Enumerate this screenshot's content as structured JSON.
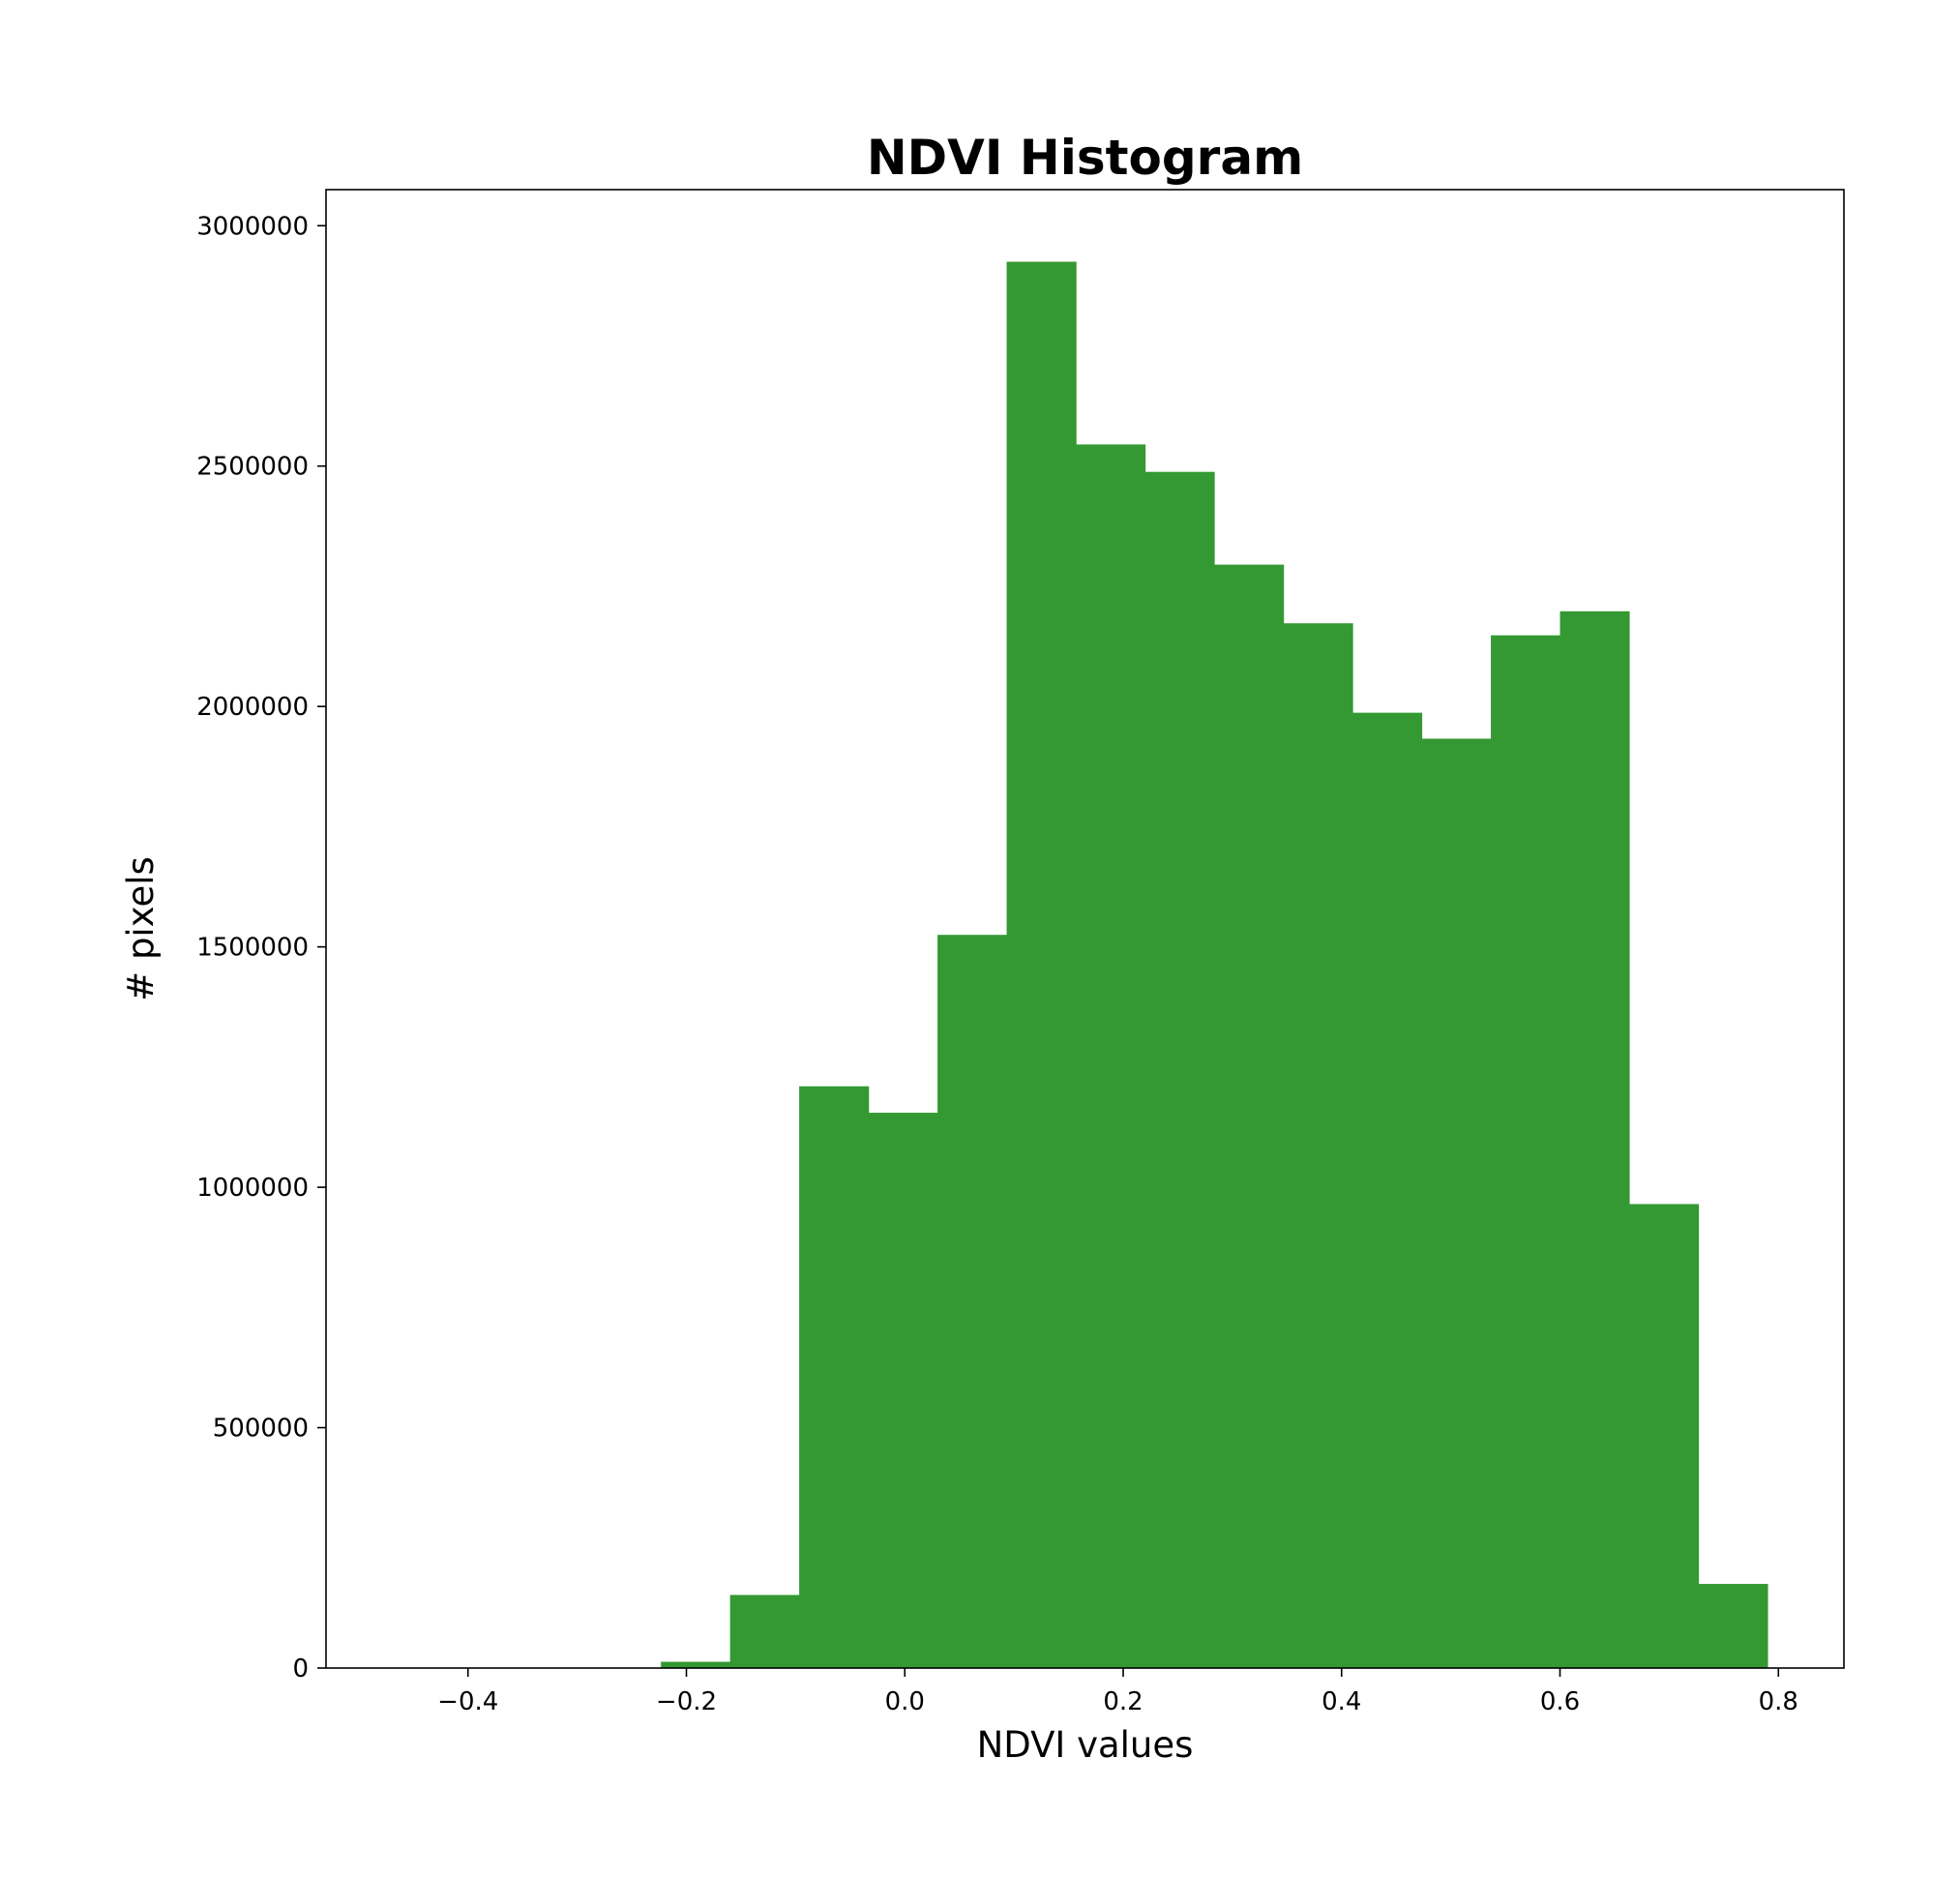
{
  "chart_data": {
    "type": "bar",
    "title": "NDVI Histogram",
    "xlabel": "NDVI values",
    "ylabel": "# pixels",
    "xlim": [
      -0.53,
      0.86
    ],
    "ylim": [
      0,
      3075000
    ],
    "bar_color": "#349933",
    "grid": false,
    "legend": "none",
    "x_ticks": [
      {
        "value": -0.4,
        "label": "−0.4"
      },
      {
        "value": -0.2,
        "label": "−0.2"
      },
      {
        "value": 0.0,
        "label": "0.0"
      },
      {
        "value": 0.2,
        "label": "0.2"
      },
      {
        "value": 0.4,
        "label": "0.4"
      },
      {
        "value": 0.6,
        "label": "0.6"
      },
      {
        "value": 0.8,
        "label": "0.8"
      }
    ],
    "y_ticks": [
      {
        "value": 0,
        "label": "0"
      },
      {
        "value": 500000,
        "label": "500000"
      },
      {
        "value": 1000000,
        "label": "1000000"
      },
      {
        "value": 1500000,
        "label": "1500000"
      },
      {
        "value": 2000000,
        "label": "2000000"
      },
      {
        "value": 2500000,
        "label": "2500000"
      },
      {
        "value": 3000000,
        "label": "3000000"
      }
    ],
    "bin_edges": [
      -0.4767,
      -0.4133,
      -0.35,
      -0.2867,
      -0.2233,
      -0.16,
      -0.0967,
      -0.0333,
      0.03,
      0.0933,
      0.1567,
      0.22,
      0.2833,
      0.3467,
      0.41,
      0.4733,
      0.5367,
      0.6,
      0.6633,
      0.7267,
      0.79
    ],
    "counts": [
      0,
      0,
      0,
      0,
      13000,
      152000,
      1210000,
      1155000,
      1525000,
      2925000,
      2545000,
      2488000,
      2295000,
      2173000,
      1987000,
      1933000,
      2148000,
      2198000,
      965000,
      175000
    ]
  }
}
